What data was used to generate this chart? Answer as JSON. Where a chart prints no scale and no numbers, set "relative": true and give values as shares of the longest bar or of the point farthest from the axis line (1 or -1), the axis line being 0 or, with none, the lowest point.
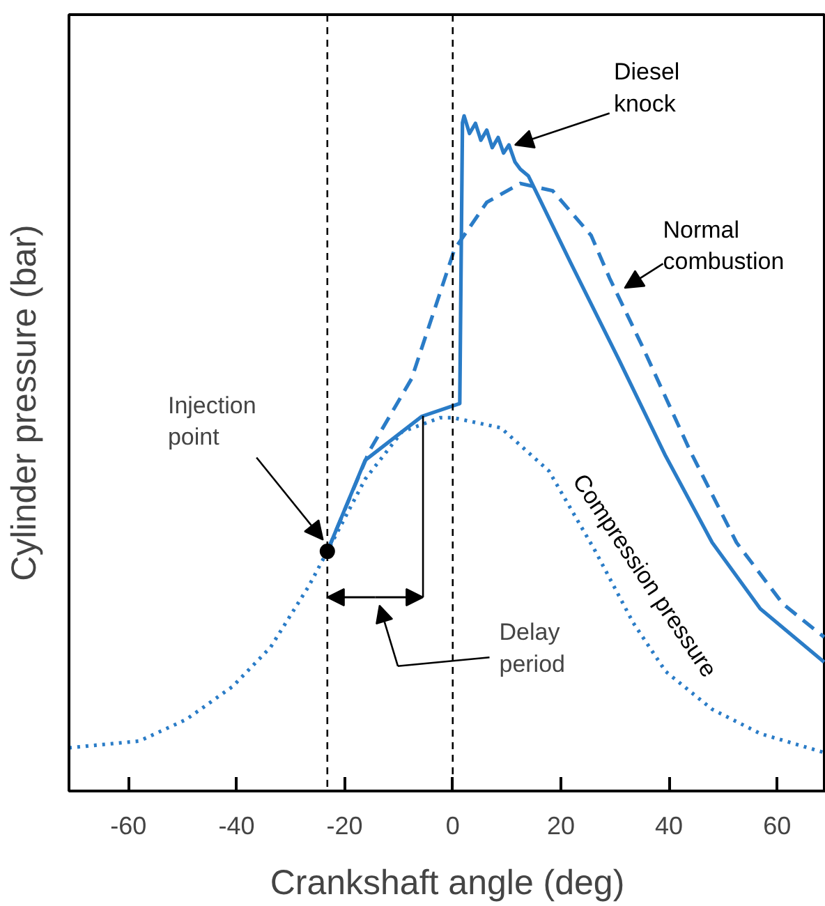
{
  "chart_data": {
    "type": "line",
    "relative": true,
    "xlabel": "Crankshaft angle (deg)",
    "ylabel": "Cylinder pressure (bar)",
    "xlim": [
      -71,
      69
    ],
    "xticks": [
      -60,
      -40,
      -20,
      0,
      20,
      40,
      60
    ],
    "grid": false,
    "series": [
      {
        "name": "Diesel knock",
        "color": "#2a7cc7",
        "line_style": "solid",
        "x": [
          -23.2,
          -16.2,
          -5.7,
          1.3,
          1.8,
          2.1,
          3.1,
          4.2,
          5.2,
          6.3,
          7.3,
          8.4,
          9.4,
          10.4,
          11.5,
          12.5,
          14.0,
          21.9,
          30.8,
          39.4,
          48.0,
          56.9,
          68.7
        ],
        "values": [
          0.355,
          0.49,
          0.555,
          0.574,
          0.99,
          1.0,
          0.974,
          0.989,
          0.964,
          0.979,
          0.953,
          0.968,
          0.945,
          0.957,
          0.932,
          0.921,
          0.911,
          0.781,
          0.638,
          0.496,
          0.368,
          0.27,
          0.191
        ]
      },
      {
        "name": "Normal combustion",
        "color": "#2a7cc7",
        "line_style": "dashed",
        "x": [
          -23.2,
          -15.4,
          -7.6,
          0.3,
          6.3,
          12.5,
          18.5,
          25.6,
          29.0,
          35.0,
          43.9,
          52.5,
          61.1,
          68.7
        ],
        "values": [
          0.355,
          0.504,
          0.611,
          0.802,
          0.872,
          0.9,
          0.889,
          0.823,
          0.76,
          0.66,
          0.504,
          0.368,
          0.277,
          0.228
        ]
      },
      {
        "name": "Compression pressure",
        "color": "#2a7cc7",
        "line_style": "dotted",
        "x": [
          -71,
          -58,
          -49.3,
          -40.7,
          -33.7,
          -26.6,
          -23.2,
          -16.2,
          -9.4,
          -2.3,
          0,
          8.9,
          17.8,
          26.4,
          33.4,
          39.4,
          48,
          56.9,
          68.7
        ],
        "values": [
          0.064,
          0.074,
          0.106,
          0.155,
          0.213,
          0.304,
          0.355,
          0.462,
          0.532,
          0.553,
          0.553,
          0.538,
          0.474,
          0.355,
          0.249,
          0.177,
          0.121,
          0.085,
          0.057
        ]
      }
    ],
    "ref_lines": [
      {
        "axis": "x",
        "value": -23.2,
        "color": "#000000",
        "line_style": "dashed"
      },
      {
        "axis": "x",
        "value": 0,
        "color": "#000000",
        "line_style": "dashed"
      }
    ],
    "annotations": [
      {
        "text": "Injection point",
        "x": -23.2,
        "y": 0.355
      },
      "Delay period"
    ]
  }
}
